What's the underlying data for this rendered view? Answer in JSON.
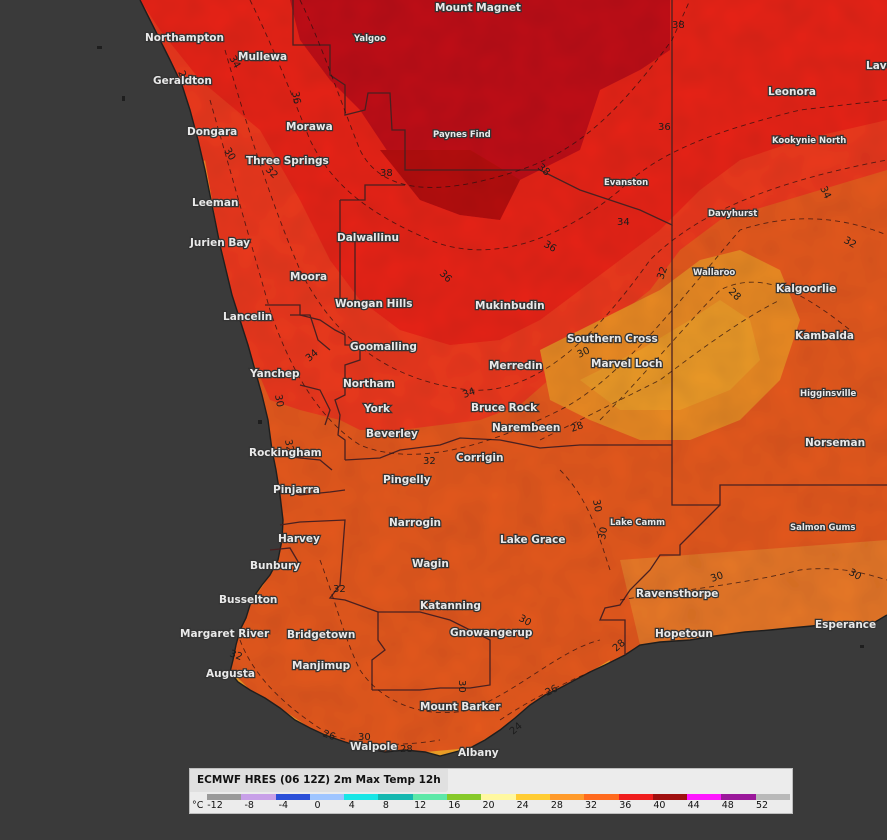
{
  "legend": {
    "title": "ECMWF HRES (06 12Z) 2m Max Temp 12h",
    "unit": "°C",
    "ticks": [
      "-12",
      "-8",
      "-4",
      "0",
      "4",
      "8",
      "12",
      "16",
      "20",
      "24",
      "28",
      "32",
      "36",
      "40",
      "44",
      "48",
      "52"
    ],
    "colors": [
      "#9a9a9a",
      "#c8a0e8",
      "#2a4fd8",
      "#9fc5ff",
      "#19e6e6",
      "#15b8b0",
      "#5de8a8",
      "#86c92a",
      "#fff8a0",
      "#ffcc33",
      "#ff9a2a",
      "#ff6a1e",
      "#f01e1e",
      "#a01010",
      "#ff18ff",
      "#9a189a",
      "#b9b9b9"
    ]
  },
  "places": [
    {
      "name": "Mount Magnet"
    },
    {
      "name": "Yalgoo"
    },
    {
      "name": "Northampton"
    },
    {
      "name": "Mullewa"
    },
    {
      "name": "Geraldton"
    },
    {
      "name": "Morawa"
    },
    {
      "name": "Paynes Find"
    },
    {
      "name": "Dongara"
    },
    {
      "name": "Three Springs"
    },
    {
      "name": "Leeman"
    },
    {
      "name": "Jurien Bay"
    },
    {
      "name": "Dalwallinu"
    },
    {
      "name": "Moora"
    },
    {
      "name": "Wongan Hills"
    },
    {
      "name": "Lancelin"
    },
    {
      "name": "Goomalling"
    },
    {
      "name": "Mukinbudin"
    },
    {
      "name": "Yanchep"
    },
    {
      "name": "Northam"
    },
    {
      "name": "Merredin"
    },
    {
      "name": "York"
    },
    {
      "name": "Bruce Rock"
    },
    {
      "name": "Beverley"
    },
    {
      "name": "Narembeen"
    },
    {
      "name": "Rockingham"
    },
    {
      "name": "Corrigin"
    },
    {
      "name": "Pingelly"
    },
    {
      "name": "Pinjarra"
    },
    {
      "name": "Narrogin"
    },
    {
      "name": "Harvey"
    },
    {
      "name": "Lake Grace"
    },
    {
      "name": "Bunbury"
    },
    {
      "name": "Wagin"
    },
    {
      "name": "Busselton"
    },
    {
      "name": "Katanning"
    },
    {
      "name": "Margaret River"
    },
    {
      "name": "Bridgetown"
    },
    {
      "name": "Gnowangerup"
    },
    {
      "name": "Manjimup"
    },
    {
      "name": "Augusta"
    },
    {
      "name": "Mount Barker"
    },
    {
      "name": "Walpole"
    },
    {
      "name": "Albany"
    },
    {
      "name": "Leonora"
    },
    {
      "name": "Lave"
    },
    {
      "name": "Kookynie North"
    },
    {
      "name": "Evanston"
    },
    {
      "name": "Davyhurst"
    },
    {
      "name": "Wallaroo"
    },
    {
      "name": "Kalgoorlie"
    },
    {
      "name": "Southern Cross"
    },
    {
      "name": "Kambalda"
    },
    {
      "name": "Marvel Loch"
    },
    {
      "name": "Higginsville"
    },
    {
      "name": "Norseman"
    },
    {
      "name": "Lake Camm"
    },
    {
      "name": "Salmon Gums"
    },
    {
      "name": "Ravensthorpe"
    },
    {
      "name": "Hopetoun"
    },
    {
      "name": "Esperance"
    }
  ],
  "contour_labels": [
    "38",
    "36",
    "34",
    "32",
    "30",
    "28",
    "26",
    "24"
  ]
}
